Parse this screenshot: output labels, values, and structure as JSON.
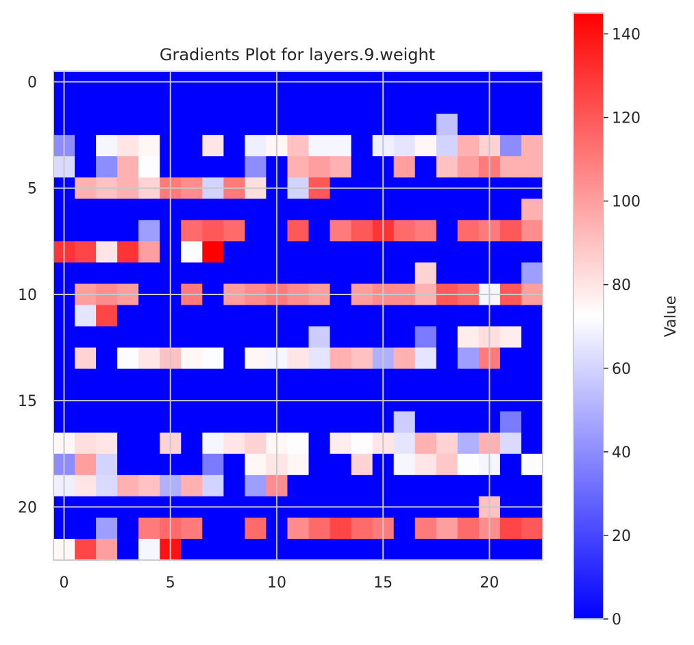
{
  "chart_data": {
    "type": "heatmap",
    "title": "Gradients Plot for layers.9.weight",
    "xlabel": "",
    "ylabel": "",
    "x_ticks": [
      0,
      5,
      10,
      15,
      20
    ],
    "y_ticks": [
      0,
      5,
      10,
      15,
      20
    ],
    "grid": true,
    "colormap": "bwr",
    "colors": {
      "low": "#0000ff",
      "mid": "#ffffff",
      "high": "#ff0000",
      "grid": "#c8c8c8",
      "frame": "#cccccc"
    },
    "colorbar": {
      "label": "Value",
      "min": 0,
      "max": 145,
      "ticks": [
        0,
        20,
        40,
        60,
        80,
        100,
        120,
        140
      ]
    },
    "matrix": [
      [
        0,
        0,
        0,
        0,
        0,
        0,
        0,
        0,
        0,
        0,
        0,
        0,
        0,
        0,
        0,
        0,
        0,
        0,
        0,
        0,
        0,
        0,
        0
      ],
      [
        0,
        0,
        0,
        0,
        0,
        0,
        0,
        0,
        0,
        0,
        0,
        0,
        0,
        0,
        0,
        0,
        0,
        0,
        0,
        0,
        0,
        0,
        0
      ],
      [
        0,
        0,
        0,
        0,
        0,
        0,
        0,
        0,
        0,
        0,
        0,
        0,
        0,
        0,
        0,
        0,
        0,
        0,
        55,
        0,
        0,
        0,
        0
      ],
      [
        40,
        0,
        70,
        80,
        75,
        0,
        0,
        80,
        0,
        68,
        75,
        90,
        70,
        70,
        0,
        68,
        65,
        75,
        60,
        95,
        85,
        40,
        95
      ],
      [
        62,
        0,
        40,
        95,
        72,
        0,
        0,
        0,
        0,
        40,
        0,
        95,
        100,
        95,
        0,
        0,
        100,
        0,
        90,
        100,
        110,
        95,
        95
      ],
      [
        0,
        95,
        90,
        95,
        85,
        110,
        105,
        60,
        110,
        82,
        0,
        60,
        120,
        0,
        0,
        0,
        0,
        0,
        0,
        0,
        0,
        0,
        0
      ],
      [
        0,
        0,
        0,
        0,
        0,
        0,
        0,
        0,
        0,
        0,
        0,
        0,
        0,
        0,
        0,
        0,
        0,
        0,
        0,
        0,
        0,
        0,
        95
      ],
      [
        0,
        0,
        0,
        0,
        45,
        0,
        115,
        120,
        115,
        0,
        0,
        120,
        0,
        110,
        120,
        130,
        115,
        110,
        0,
        115,
        110,
        120,
        105
      ],
      [
        130,
        125,
        80,
        130,
        100,
        0,
        72,
        145,
        0,
        0,
        0,
        0,
        0,
        0,
        0,
        0,
        0,
        0,
        0,
        0,
        0,
        0,
        0
      ],
      [
        0,
        0,
        0,
        0,
        0,
        0,
        0,
        0,
        0,
        0,
        0,
        0,
        0,
        0,
        0,
        0,
        0,
        85,
        0,
        0,
        0,
        0,
        45
      ],
      [
        0,
        100,
        105,
        100,
        0,
        0,
        110,
        0,
        100,
        105,
        110,
        105,
        100,
        0,
        100,
        105,
        105,
        95,
        120,
        115,
        70,
        120,
        100
      ],
      [
        0,
        65,
        125,
        0,
        0,
        0,
        0,
        0,
        0,
        0,
        0,
        0,
        0,
        0,
        0,
        0,
        0,
        0,
        0,
        0,
        0,
        0,
        0
      ],
      [
        0,
        0,
        0,
        0,
        0,
        0,
        0,
        0,
        0,
        0,
        0,
        0,
        58,
        0,
        0,
        0,
        0,
        35,
        0,
        78,
        82,
        78,
        0
      ],
      [
        0,
        85,
        0,
        72,
        80,
        90,
        75,
        72,
        0,
        75,
        70,
        80,
        65,
        95,
        90,
        50,
        95,
        65,
        0,
        45,
        110,
        0,
        0
      ],
      [
        0,
        0,
        0,
        0,
        0,
        0,
        0,
        0,
        0,
        0,
        0,
        0,
        0,
        0,
        0,
        0,
        0,
        0,
        0,
        0,
        0,
        0,
        0
      ],
      [
        0,
        0,
        0,
        0,
        0,
        0,
        0,
        0,
        0,
        0,
        0,
        0,
        0,
        0,
        0,
        0,
        0,
        0,
        0,
        0,
        0,
        0,
        0
      ],
      [
        0,
        0,
        0,
        0,
        0,
        0,
        0,
        0,
        0,
        0,
        0,
        0,
        0,
        0,
        0,
        0,
        58,
        0,
        0,
        0,
        0,
        35,
        0
      ],
      [
        75,
        82,
        80,
        0,
        0,
        85,
        0,
        70,
        80,
        85,
        75,
        72,
        0,
        78,
        72,
        80,
        65,
        95,
        85,
        50,
        95,
        62,
        0
      ],
      [
        40,
        100,
        60,
        0,
        0,
        0,
        0,
        35,
        0,
        75,
        80,
        75,
        0,
        0,
        85,
        0,
        70,
        80,
        88,
        72,
        70,
        0,
        72
      ],
      [
        68,
        80,
        62,
        95,
        90,
        50,
        95,
        60,
        0,
        45,
        105,
        0,
        0,
        0,
        0,
        0,
        0,
        0,
        0,
        0,
        0,
        0,
        0
      ],
      [
        0,
        0,
        0,
        0,
        0,
        0,
        0,
        0,
        0,
        0,
        0,
        0,
        0,
        0,
        0,
        0,
        0,
        0,
        0,
        0,
        90,
        0,
        0
      ],
      [
        0,
        0,
        45,
        0,
        110,
        115,
        110,
        0,
        0,
        115,
        0,
        105,
        115,
        125,
        115,
        110,
        0,
        110,
        100,
        115,
        105,
        125,
        120
      ],
      [
        75,
        125,
        100,
        0,
        70,
        140,
        0,
        0,
        0,
        0,
        0,
        0,
        0,
        0,
        0,
        0,
        0,
        0,
        0,
        0,
        0,
        0,
        0
      ]
    ]
  }
}
